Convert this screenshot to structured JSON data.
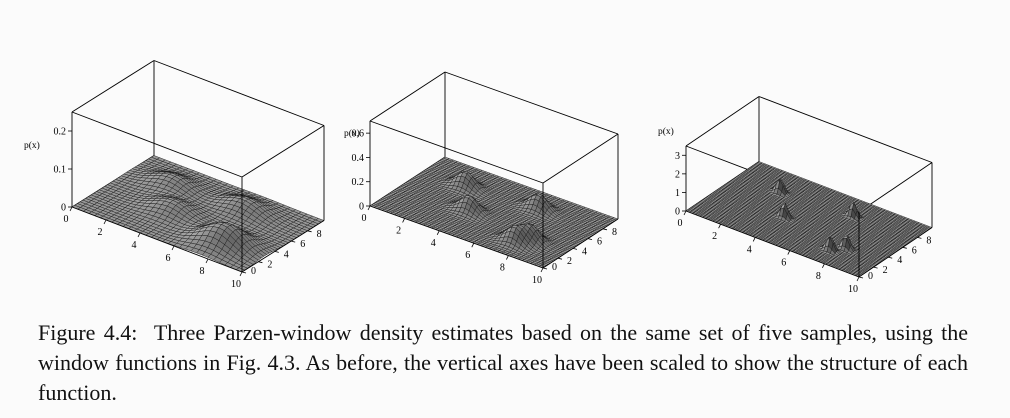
{
  "caption": {
    "label": "Figure 4.4:",
    "text": "Three Parzen-window density estimates based on the same set of five samples, using the window functions in Fig. 4.3.  As before, the vertical axes have been scaled to show the structure of each function."
  },
  "chart_data": [
    {
      "type": "surface",
      "title": "",
      "ylabel": "p(x)",
      "z_ticks": [
        "0",
        "0.1",
        "0.2"
      ],
      "x_ticks": [
        "0",
        "2",
        "4",
        "6",
        "8",
        "10"
      ],
      "y_ticks": [
        "0",
        "2",
        "4",
        "6",
        "8"
      ],
      "xlim": [
        0,
        10
      ],
      "ylim": [
        0,
        10
      ],
      "zlim": [
        0,
        0.25
      ],
      "window_width": 1.0,
      "sample_points": [
        [
          2.5,
          7.0
        ],
        [
          4.0,
          4.0
        ],
        [
          6.5,
          7.5
        ],
        [
          8.0,
          3.0
        ],
        [
          7.5,
          2.0
        ]
      ]
    },
    {
      "type": "surface",
      "title": "",
      "ylabel": "p(x)",
      "z_ticks": [
        "0",
        "0.2",
        "0.4",
        "0.6"
      ],
      "x_ticks": [
        "0",
        "2",
        "4",
        "6",
        "8",
        "10"
      ],
      "y_ticks": [
        "0",
        "2",
        "4",
        "6",
        "8"
      ],
      "xlim": [
        0,
        10
      ],
      "ylim": [
        0,
        10
      ],
      "zlim": [
        0,
        0.7
      ],
      "window_width": 0.5,
      "sample_points": [
        [
          2.5,
          7.0
        ],
        [
          4.0,
          4.0
        ],
        [
          6.5,
          7.5
        ],
        [
          8.0,
          3.0
        ],
        [
          7.5,
          2.0
        ]
      ]
    },
    {
      "type": "surface",
      "title": "",
      "ylabel": "p(x)",
      "z_ticks": [
        "0",
        "1",
        "2",
        "3"
      ],
      "x_ticks": [
        "0",
        "2",
        "4",
        "6",
        "8",
        "10"
      ],
      "y_ticks": [
        "0",
        "2",
        "4",
        "6",
        "8"
      ],
      "xlim": [
        0,
        10
      ],
      "ylim": [
        0,
        10
      ],
      "zlim": [
        0,
        3.5
      ],
      "window_width": 0.2,
      "sample_points": [
        [
          2.5,
          7.0
        ],
        [
          4.0,
          4.0
        ],
        [
          6.5,
          7.5
        ],
        [
          8.0,
          3.0
        ],
        [
          7.5,
          2.0
        ]
      ]
    }
  ]
}
